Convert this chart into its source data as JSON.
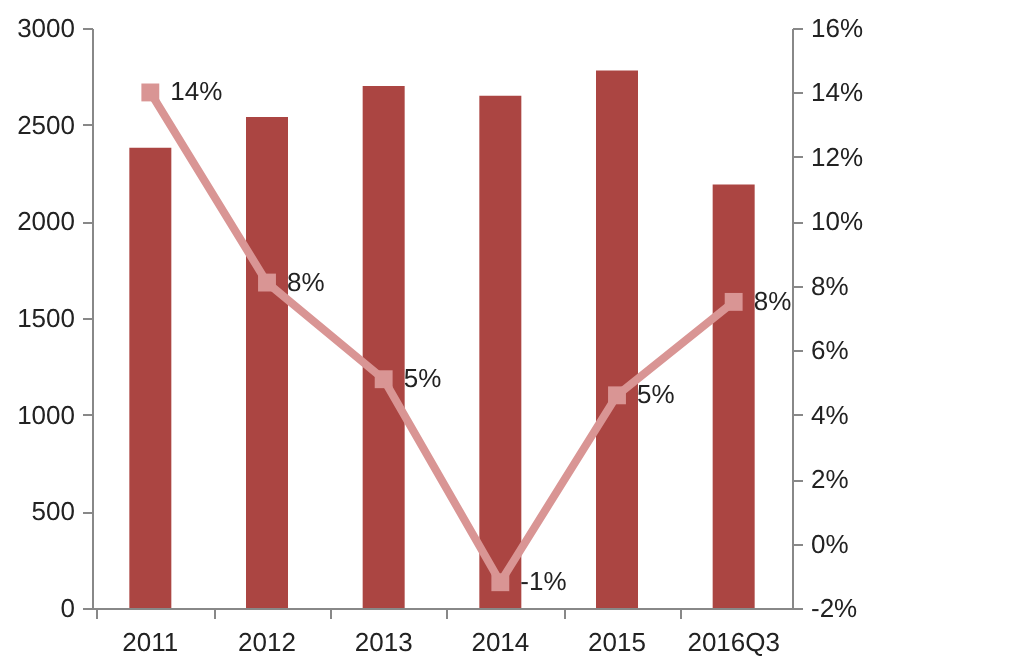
{
  "chart_data": {
    "type": "bar",
    "categories": [
      "2011",
      "2012",
      "2013",
      "2014",
      "2015",
      "2016Q3"
    ],
    "series": [
      {
        "color": "#ab4542",
        "values": [
          2380,
          2540,
          2700,
          2650,
          2780,
          2190
        ]
      },
      {
        "type": "line",
        "axis": "y2",
        "color": "#d99594",
        "values": [
          14.0,
          8.1,
          5.1,
          -1.2,
          4.6,
          7.5
        ],
        "value_labels": [
          "14%",
          "8%",
          "5%",
          "-1%",
          "5%",
          "8%"
        ]
      }
    ],
    "ylim": [
      0,
      3000
    ],
    "yticks": [
      0,
      500,
      1000,
      1500,
      2000,
      2500,
      3000
    ],
    "y2lim": [
      -2,
      16
    ],
    "y2ticks": [
      {
        "value": -2,
        "label": "-2%"
      },
      {
        "value": 0,
        "label": "0%"
      },
      {
        "value": 2,
        "label": "2%"
      },
      {
        "value": 4,
        "label": "4%"
      },
      {
        "value": 6,
        "label": "6%"
      },
      {
        "value": 8,
        "label": "8%"
      },
      {
        "value": 10,
        "label": "10%"
      },
      {
        "value": 12,
        "label": "12%"
      },
      {
        "value": 14,
        "label": "14%"
      },
      {
        "value": 16,
        "label": "16%"
      }
    ],
    "marker": "square",
    "grid": false
  }
}
